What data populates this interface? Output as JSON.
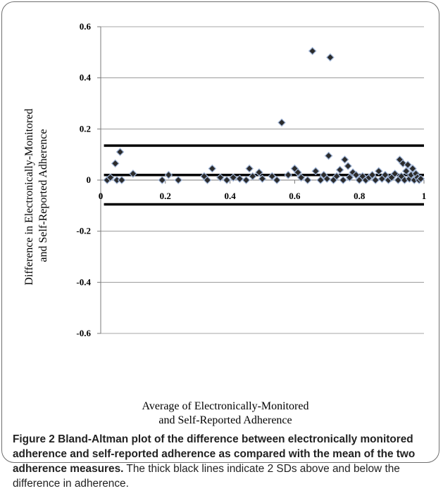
{
  "chart_data": {
    "type": "scatter",
    "title": "",
    "xlabel": "Average of Electronically-Monitored and Self-Reported Adherence",
    "xlabel_lines": [
      "Average of Electronically-Monitored",
      "and Self-Reported Adherence"
    ],
    "ylabel": "Difference in Electronically-Monitored and Self-Reported Adherence",
    "ylabel_lines": [
      "Difference in Electronically-Monitored",
      "and Self-Reported Adherence"
    ],
    "xlim": [
      0,
      1
    ],
    "ylim": [
      -0.6,
      0.6
    ],
    "x_ticks": [
      0,
      0.2,
      0.4,
      0.6,
      0.8,
      1
    ],
    "x_tick_labels": [
      "0",
      "0.2",
      "0.4",
      "0.6",
      "0.8",
      "1"
    ],
    "y_ticks": [
      0.6,
      0.4,
      0.2,
      0,
      -0.2,
      -0.4,
      -0.6
    ],
    "y_tick_labels": [
      "0.6",
      "0.4",
      "0.2",
      "0",
      "-0.2",
      "-0.4",
      "-0.6"
    ],
    "grid": true,
    "marker": "diamond",
    "marker_color": "#2b2b2b",
    "marker_edge_color": "#9fb4d6",
    "reference_lines": [
      {
        "label": "+2 SD",
        "y": 0.135
      },
      {
        "label": "mean difference",
        "y": 0.02
      },
      {
        "label": "-2 SD",
        "y": -0.095
      }
    ],
    "points": [
      {
        "x": 0.02,
        "y": 0.0
      },
      {
        "x": 0.03,
        "y": 0.01
      },
      {
        "x": 0.045,
        "y": 0.065
      },
      {
        "x": 0.05,
        "y": 0.0
      },
      {
        "x": 0.06,
        "y": 0.11
      },
      {
        "x": 0.065,
        "y": 0.0
      },
      {
        "x": 0.1,
        "y": 0.025
      },
      {
        "x": 0.19,
        "y": 0.0
      },
      {
        "x": 0.21,
        "y": 0.02
      },
      {
        "x": 0.24,
        "y": 0.0
      },
      {
        "x": 0.32,
        "y": 0.015
      },
      {
        "x": 0.33,
        "y": 0.0
      },
      {
        "x": 0.345,
        "y": 0.045
      },
      {
        "x": 0.37,
        "y": 0.01
      },
      {
        "x": 0.39,
        "y": 0.0
      },
      {
        "x": 0.41,
        "y": 0.01
      },
      {
        "x": 0.43,
        "y": 0.005
      },
      {
        "x": 0.45,
        "y": 0.0
      },
      {
        "x": 0.46,
        "y": 0.045
      },
      {
        "x": 0.47,
        "y": 0.015
      },
      {
        "x": 0.49,
        "y": 0.03
      },
      {
        "x": 0.5,
        "y": 0.005
      },
      {
        "x": 0.53,
        "y": 0.015
      },
      {
        "x": 0.545,
        "y": 0.0
      },
      {
        "x": 0.56,
        "y": 0.225
      },
      {
        "x": 0.58,
        "y": 0.02
      },
      {
        "x": 0.6,
        "y": 0.045
      },
      {
        "x": 0.61,
        "y": 0.03
      },
      {
        "x": 0.62,
        "y": 0.01
      },
      {
        "x": 0.64,
        "y": 0.0
      },
      {
        "x": 0.655,
        "y": 0.505
      },
      {
        "x": 0.665,
        "y": 0.035
      },
      {
        "x": 0.68,
        "y": 0.0
      },
      {
        "x": 0.69,
        "y": 0.02
      },
      {
        "x": 0.7,
        "y": 0.005
      },
      {
        "x": 0.705,
        "y": 0.095
      },
      {
        "x": 0.71,
        "y": 0.48
      },
      {
        "x": 0.72,
        "y": 0.0
      },
      {
        "x": 0.73,
        "y": 0.015
      },
      {
        "x": 0.74,
        "y": 0.04
      },
      {
        "x": 0.75,
        "y": 0.0
      },
      {
        "x": 0.755,
        "y": 0.08
      },
      {
        "x": 0.765,
        "y": 0.055
      },
      {
        "x": 0.77,
        "y": 0.01
      },
      {
        "x": 0.78,
        "y": 0.03
      },
      {
        "x": 0.79,
        "y": 0.02
      },
      {
        "x": 0.8,
        "y": 0.0
      },
      {
        "x": 0.81,
        "y": 0.015
      },
      {
        "x": 0.82,
        "y": 0.0
      },
      {
        "x": 0.83,
        "y": 0.01
      },
      {
        "x": 0.84,
        "y": 0.02
      },
      {
        "x": 0.85,
        "y": 0.0
      },
      {
        "x": 0.86,
        "y": 0.035
      },
      {
        "x": 0.87,
        "y": 0.005
      },
      {
        "x": 0.88,
        "y": 0.02
      },
      {
        "x": 0.89,
        "y": 0.0
      },
      {
        "x": 0.9,
        "y": 0.01
      },
      {
        "x": 0.91,
        "y": 0.025
      },
      {
        "x": 0.92,
        "y": 0.0
      },
      {
        "x": 0.925,
        "y": 0.08
      },
      {
        "x": 0.93,
        "y": 0.015
      },
      {
        "x": 0.935,
        "y": 0.065
      },
      {
        "x": 0.94,
        "y": 0.0
      },
      {
        "x": 0.945,
        "y": 0.035
      },
      {
        "x": 0.95,
        "y": 0.06
      },
      {
        "x": 0.955,
        "y": 0.005
      },
      {
        "x": 0.96,
        "y": 0.02
      },
      {
        "x": 0.965,
        "y": 0.045
      },
      {
        "x": 0.97,
        "y": 0.0
      },
      {
        "x": 0.975,
        "y": 0.025
      },
      {
        "x": 0.98,
        "y": 0.01
      },
      {
        "x": 0.985,
        "y": 0.0
      },
      {
        "x": 0.99,
        "y": 0.005
      }
    ]
  },
  "caption": {
    "label": "Figure 2",
    "title": "Bland-Altman plot of the difference between electronically monitored adherence and self-reported adherence as compared with the mean of the two adherence measures.",
    "text": "The thick black lines indicate 2 SDs above and below the difference in adherence."
  }
}
